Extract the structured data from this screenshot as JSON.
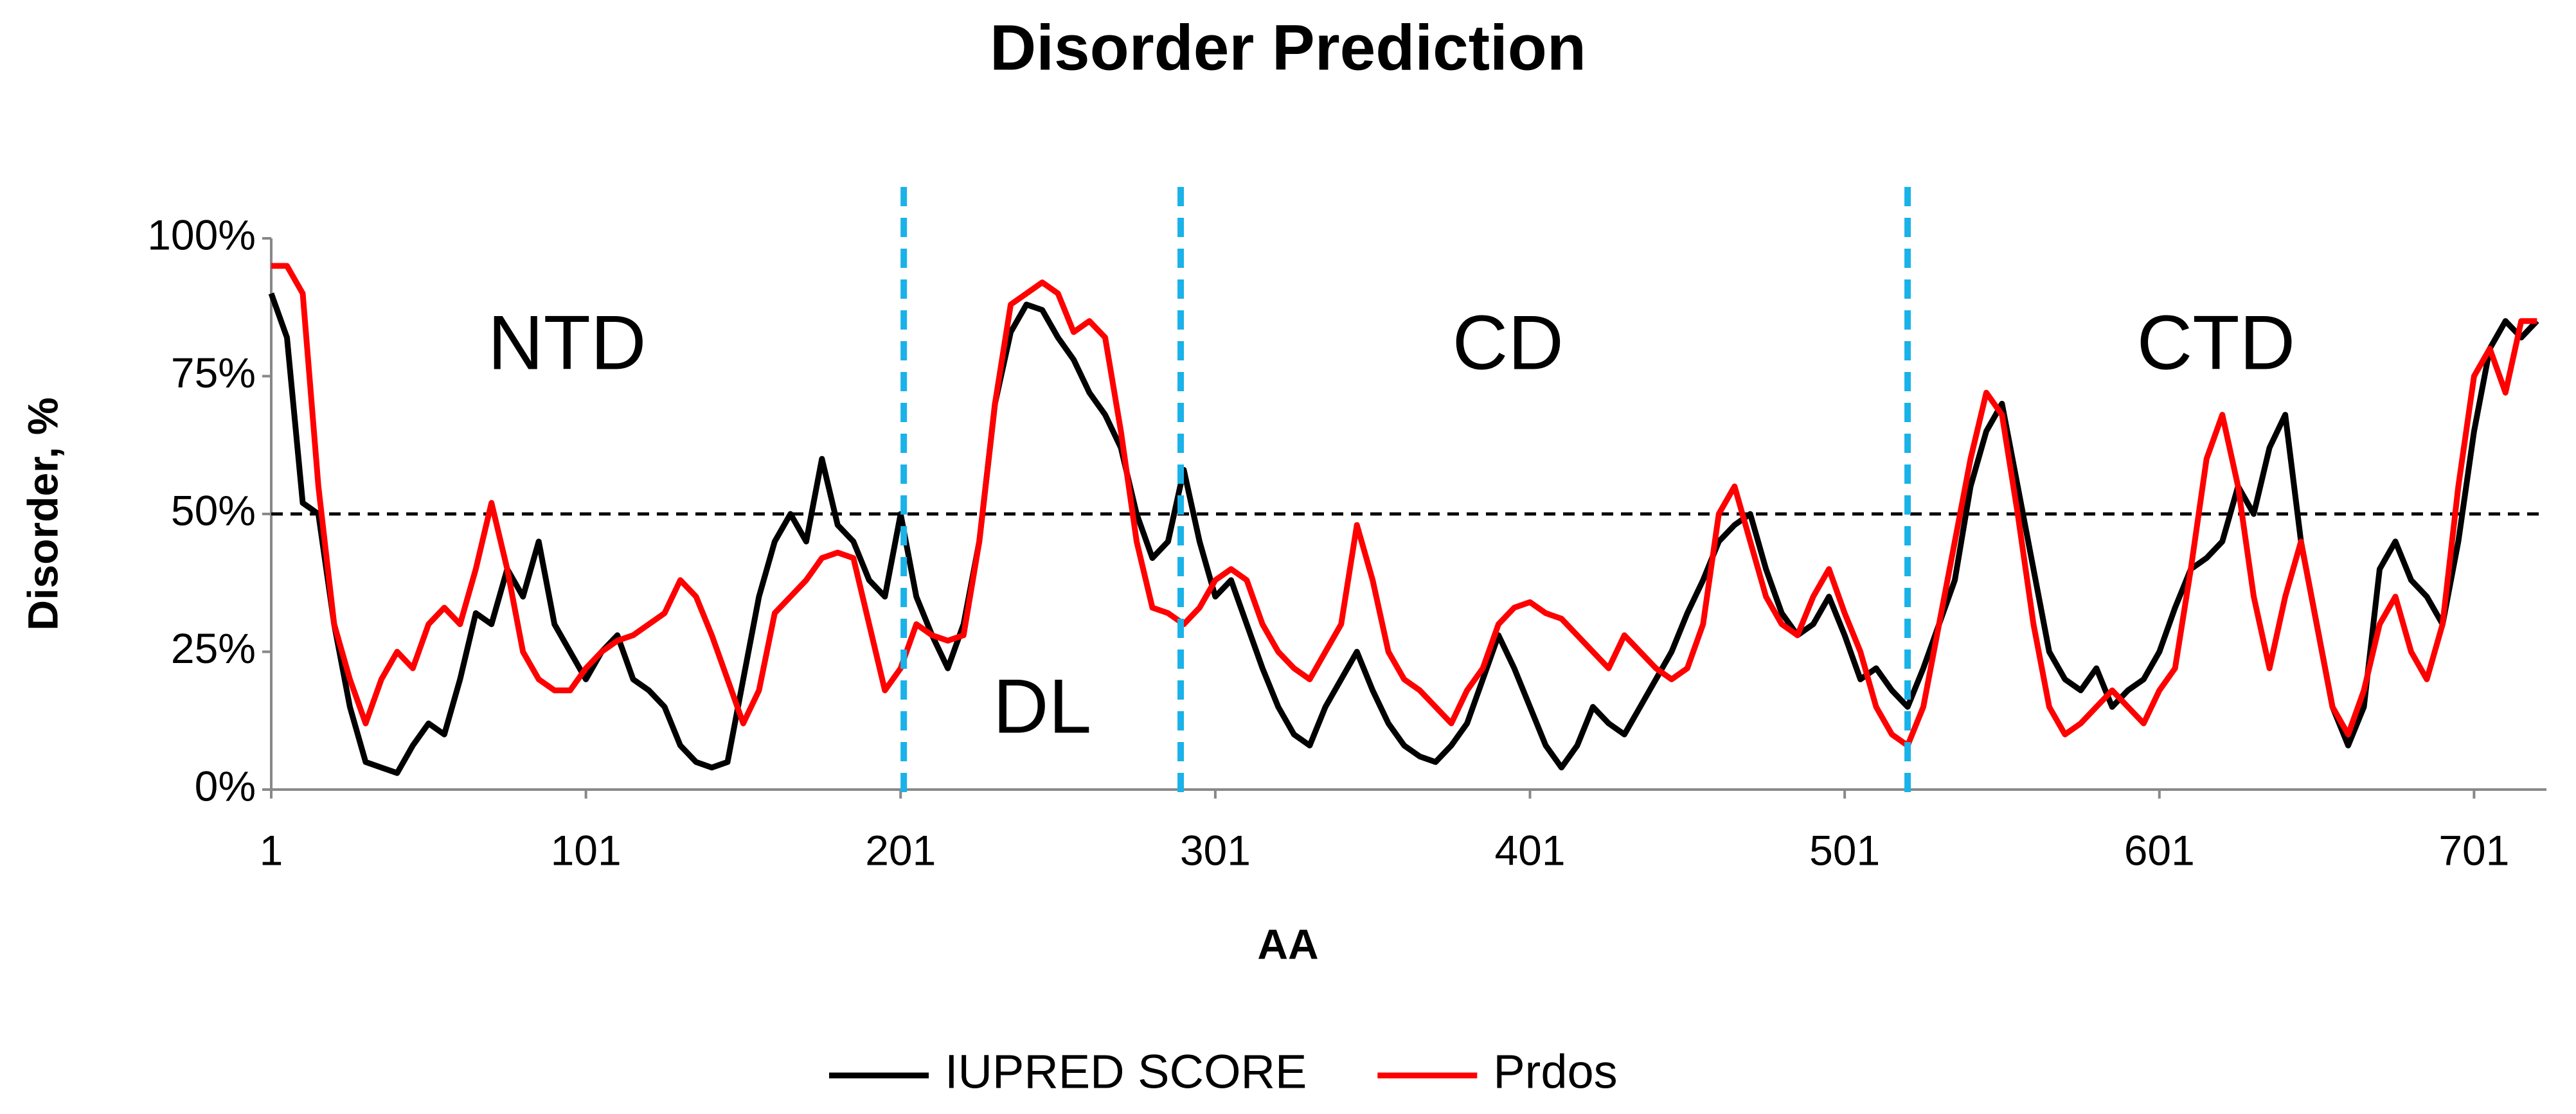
{
  "chart_data": {
    "type": "line",
    "title": "Disorder Prediction",
    "x_label": "AA",
    "y_label": "Disorder, %",
    "xlim": [
      1,
      724
    ],
    "xticks": [
      1,
      101,
      201,
      301,
      401,
      501,
      601,
      701
    ],
    "ylim": [
      0,
      100
    ],
    "yticks": [
      {
        "value": 0,
        "label": "0%"
      },
      {
        "value": 25,
        "label": "25%"
      },
      {
        "value": 50,
        "label": "50%"
      },
      {
        "value": 75,
        "label": "75%"
      },
      {
        "value": 100,
        "label": "100%"
      }
    ],
    "grid": false,
    "legend": "bottom",
    "threshold": 50,
    "threshold_color": "#000000",
    "dividers": [
      202,
      290,
      521
    ],
    "divider_color": "#1ab2e8",
    "annotations": [
      {
        "text": "NTD",
        "x": 95,
        "y": 80
      },
      {
        "text": "DL",
        "x": 246,
        "y": 14
      },
      {
        "text": "CD",
        "x": 394,
        "y": 80
      },
      {
        "text": "CTD",
        "x": 619,
        "y": 80
      }
    ],
    "x": [
      1,
      6,
      11,
      16,
      21,
      26,
      31,
      36,
      41,
      46,
      51,
      56,
      61,
      66,
      71,
      76,
      81,
      86,
      91,
      96,
      101,
      106,
      111,
      116,
      121,
      126,
      131,
      136,
      141,
      146,
      151,
      156,
      161,
      166,
      171,
      176,
      181,
      186,
      191,
      196,
      201,
      206,
      211,
      216,
      221,
      226,
      231,
      236,
      241,
      246,
      251,
      256,
      261,
      266,
      271,
      276,
      281,
      286,
      291,
      296,
      301,
      306,
      311,
      316,
      321,
      326,
      331,
      336,
      341,
      346,
      351,
      356,
      361,
      366,
      371,
      376,
      381,
      386,
      391,
      396,
      401,
      406,
      411,
      416,
      421,
      426,
      431,
      436,
      441,
      446,
      451,
      456,
      461,
      466,
      471,
      476,
      481,
      486,
      491,
      496,
      501,
      506,
      511,
      516,
      521,
      526,
      531,
      536,
      541,
      546,
      551,
      556,
      561,
      566,
      571,
      576,
      581,
      586,
      591,
      596,
      601,
      606,
      611,
      616,
      621,
      626,
      631,
      636,
      641,
      646,
      651,
      656,
      661,
      666,
      671,
      676,
      681,
      686,
      691,
      696,
      701,
      706,
      711,
      716,
      721
    ],
    "series": [
      {
        "name": "IUPRED SCORE",
        "color": "#000000",
        "values": [
          90,
          82,
          52,
          50,
          30,
          15,
          5,
          4,
          3,
          8,
          12,
          10,
          20,
          32,
          30,
          40,
          35,
          45,
          30,
          25,
          20,
          25,
          28,
          20,
          18,
          15,
          8,
          5,
          4,
          5,
          20,
          35,
          45,
          50,
          45,
          60,
          48,
          45,
          38,
          35,
          50,
          35,
          28,
          22,
          30,
          45,
          70,
          83,
          88,
          87,
          82,
          78,
          72,
          68,
          62,
          50,
          42,
          45,
          58,
          45,
          35,
          38,
          30,
          22,
          15,
          10,
          8,
          15,
          20,
          25,
          18,
          12,
          8,
          6,
          5,
          8,
          12,
          20,
          28,
          22,
          15,
          8,
          4,
          8,
          15,
          12,
          10,
          15,
          20,
          25,
          32,
          38,
          45,
          48,
          50,
          40,
          32,
          28,
          30,
          35,
          28,
          20,
          22,
          18,
          15,
          22,
          30,
          38,
          55,
          65,
          70,
          55,
          40,
          25,
          20,
          18,
          22,
          15,
          18,
          20,
          25,
          33,
          40,
          42,
          45,
          55,
          50,
          62,
          68,
          45,
          30,
          15,
          8,
          15,
          40,
          45,
          38,
          35,
          30,
          45,
          65,
          80,
          85,
          82,
          85
        ]
      },
      {
        "name": "Prdos",
        "color": "#ff0000",
        "values": [
          95,
          95,
          90,
          55,
          30,
          20,
          12,
          20,
          25,
          22,
          30,
          33,
          30,
          40,
          52,
          40,
          25,
          20,
          18,
          18,
          22,
          25,
          27,
          28,
          30,
          32,
          38,
          35,
          28,
          20,
          12,
          18,
          32,
          35,
          38,
          42,
          43,
          42,
          30,
          18,
          22,
          30,
          28,
          27,
          28,
          45,
          70,
          88,
          90,
          92,
          90,
          83,
          85,
          82,
          65,
          45,
          33,
          32,
          30,
          33,
          38,
          40,
          38,
          30,
          25,
          22,
          20,
          25,
          30,
          48,
          38,
          25,
          20,
          18,
          15,
          12,
          18,
          22,
          30,
          33,
          34,
          32,
          31,
          28,
          25,
          22,
          28,
          25,
          22,
          20,
          22,
          30,
          50,
          55,
          45,
          35,
          30,
          28,
          35,
          40,
          32,
          25,
          15,
          10,
          8,
          15,
          30,
          45,
          60,
          72,
          68,
          50,
          30,
          15,
          10,
          12,
          15,
          18,
          15,
          12,
          18,
          22,
          40,
          60,
          68,
          55,
          35,
          22,
          35,
          45,
          30,
          15,
          10,
          18,
          30,
          35,
          25,
          20,
          30,
          55,
          75,
          80,
          72,
          85,
          85
        ]
      }
    ]
  }
}
